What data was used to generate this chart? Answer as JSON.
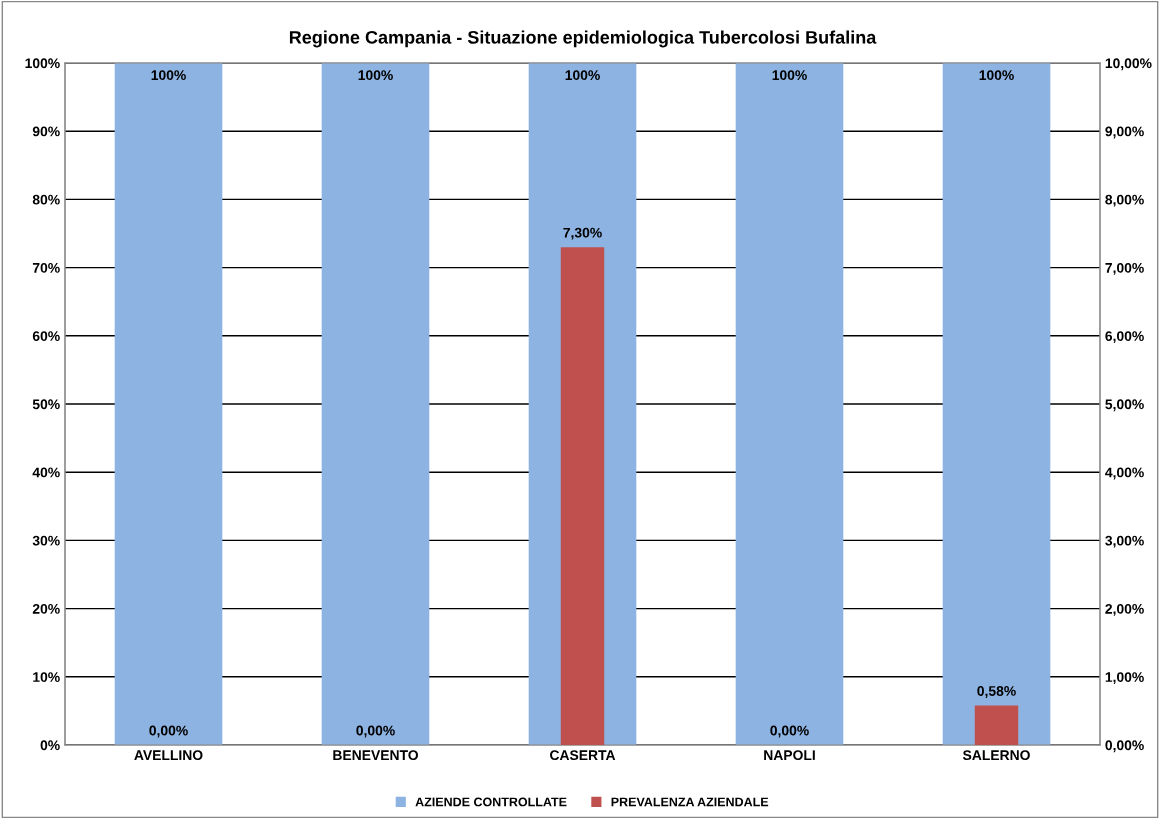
{
  "chart_data": {
    "type": "bar",
    "title": "Regione Campania - Situazione epidemiologica Tubercolosi Bufalina",
    "categories": [
      "AVELLINO",
      "BENEVENTO",
      "CASERTA",
      "NAPOLI",
      "SALERNO"
    ],
    "series": [
      {
        "name": "AZIENDE CONTROLLATE",
        "color": "#8db3e2",
        "values": [
          100,
          100,
          100,
          100,
          100
        ],
        "value_labels": [
          "100%",
          "100%",
          "100%",
          "100%",
          "100%"
        ]
      },
      {
        "name": "PREVALENZA AZIENDALE",
        "color": "#c0504d",
        "axis": "y2",
        "values": [
          0,
          0,
          7.3,
          0,
          0.58
        ],
        "value_labels": [
          "0,00%",
          "0,00%",
          "7,30%",
          "0,00%",
          "0,58%"
        ]
      }
    ],
    "ylim": [
      0,
      100
    ],
    "yticks": [
      {
        "value": 0,
        "label": "0%"
      },
      {
        "value": 10,
        "label": "10%"
      },
      {
        "value": 20,
        "label": "20%"
      },
      {
        "value": 30,
        "label": "30%"
      },
      {
        "value": 40,
        "label": "40%"
      },
      {
        "value": 50,
        "label": "50%"
      },
      {
        "value": 60,
        "label": "60%"
      },
      {
        "value": 70,
        "label": "70%"
      },
      {
        "value": 80,
        "label": "80%"
      },
      {
        "value": 90,
        "label": "90%"
      },
      {
        "value": 100,
        "label": "100%"
      }
    ],
    "y2lim": [
      0,
      10
    ],
    "y2ticks": [
      {
        "value": 0,
        "label": "0,00%"
      },
      {
        "value": 1,
        "label": "1,00%"
      },
      {
        "value": 2,
        "label": "2,00%"
      },
      {
        "value": 3,
        "label": "3,00%"
      },
      {
        "value": 4,
        "label": "4,00%"
      },
      {
        "value": 5,
        "label": "5,00%"
      },
      {
        "value": 6,
        "label": "6,00%"
      },
      {
        "value": 7,
        "label": "7,00%"
      },
      {
        "value": 8,
        "label": "8,00%"
      },
      {
        "value": 9,
        "label": "9,00%"
      },
      {
        "value": 10,
        "label": "10,00%"
      }
    ],
    "grid": "y",
    "legend": "bottom"
  }
}
